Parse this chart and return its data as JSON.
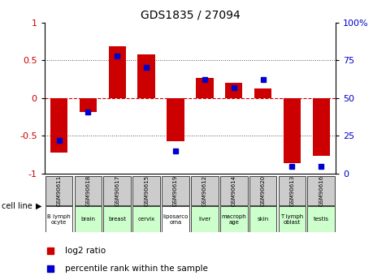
{
  "title": "GDS1835 / 27094",
  "samples": [
    "GSM90611",
    "GSM90618",
    "GSM90617",
    "GSM90615",
    "GSM90619",
    "GSM90612",
    "GSM90614",
    "GSM90620",
    "GSM90613",
    "GSM90616"
  ],
  "cell_lines": [
    "B lymph\nocyte",
    "brain",
    "breast",
    "cervix",
    "liposarco\noma",
    "liver",
    "macroph\nage",
    "skin",
    "T lymph\noblast",
    "testis"
  ],
  "cell_colors": [
    "#ffffff",
    "#ccffcc",
    "#ccffcc",
    "#ccffcc",
    "#ffffff",
    "#ccffcc",
    "#ccffcc",
    "#ccffcc",
    "#ccffcc",
    "#ccffcc"
  ],
  "log2_ratio": [
    -0.72,
    -0.18,
    0.68,
    0.58,
    -0.57,
    0.27,
    0.2,
    0.13,
    -0.86,
    -0.76
  ],
  "pct_rank": [
    22,
    41,
    78,
    70,
    15,
    62,
    57,
    62,
    5,
    5
  ],
  "ylim": [
    -1,
    1
  ],
  "y_left_ticks": [
    -1,
    -0.5,
    0,
    0.5,
    1
  ],
  "y_right_ticks": [
    0,
    25,
    50,
    75,
    100
  ],
  "bar_color": "#cc0000",
  "dot_color": "#0000cc",
  "zero_line_color": "#cc0000",
  "dotted_color": "#555555",
  "bg_color": "#ffffff",
  "sample_box_color": "#cccccc",
  "legend_bar": "log2 ratio",
  "legend_dot": "percentile rank within the sample",
  "cell_line_label": "cell line"
}
